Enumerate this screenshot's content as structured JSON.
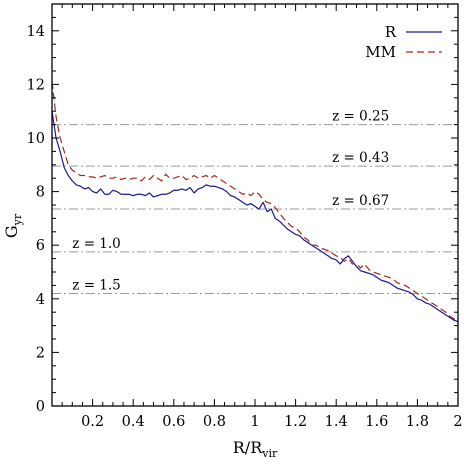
{
  "chart_data": {
    "type": "line",
    "xlabel": "R/R",
    "xlabel_sub": "vir",
    "ylabel": "G",
    "ylabel_sub": "yr",
    "xlim": [
      0,
      2
    ],
    "ylim": [
      0,
      15
    ],
    "xticks": [
      0.2,
      0.4,
      0.6,
      0.8,
      1.0,
      1.2,
      1.4,
      1.6,
      1.8,
      2.0
    ],
    "xtick_labels": [
      "0.2",
      "0.4",
      "0.6",
      "0.8",
      "1",
      "1.2",
      "1.4",
      "1.6",
      "1.8",
      "2"
    ],
    "yticks": [
      0,
      2,
      4,
      6,
      8,
      10,
      12,
      14
    ],
    "ytick_labels": [
      "0",
      "2",
      "4",
      "6",
      "8",
      "10",
      "12",
      "14"
    ],
    "grid": false,
    "legend": "top-right",
    "reference_lines": [
      {
        "label": "z = 0.25",
        "y": 10.5,
        "label_x": 1.38
      },
      {
        "label": "z = 0.43",
        "y": 8.95,
        "label_x": 1.38
      },
      {
        "label": "z = 0.67",
        "y": 7.35,
        "label_x": 1.38
      },
      {
        "label": "z = 1.0",
        "y": 5.75,
        "label_x": 0.1
      },
      {
        "label": "z = 1.5",
        "y": 4.2,
        "label_x": 0.1
      }
    ],
    "series": [
      {
        "name": "R",
        "color": "#1a1a8c",
        "style": "solid",
        "x": [
          0.0,
          0.02,
          0.04,
          0.06,
          0.08,
          0.1,
          0.12,
          0.14,
          0.16,
          0.18,
          0.2,
          0.22,
          0.24,
          0.26,
          0.28,
          0.3,
          0.32,
          0.34,
          0.36,
          0.38,
          0.4,
          0.42,
          0.44,
          0.46,
          0.48,
          0.5,
          0.52,
          0.54,
          0.56,
          0.58,
          0.6,
          0.62,
          0.64,
          0.66,
          0.68,
          0.7,
          0.72,
          0.74,
          0.76,
          0.78,
          0.8,
          0.82,
          0.84,
          0.86,
          0.88,
          0.9,
          0.92,
          0.94,
          0.96,
          0.98,
          1.0,
          1.02,
          1.04,
          1.06,
          1.08,
          1.1,
          1.12,
          1.14,
          1.16,
          1.18,
          1.2,
          1.22,
          1.24,
          1.26,
          1.28,
          1.3,
          1.32,
          1.34,
          1.36,
          1.38,
          1.4,
          1.42,
          1.44,
          1.46,
          1.48,
          1.5,
          1.52,
          1.54,
          1.56,
          1.58,
          1.6,
          1.62,
          1.64,
          1.66,
          1.68,
          1.7,
          1.72,
          1.74,
          1.76,
          1.78,
          1.8,
          1.82,
          1.84,
          1.86,
          1.88,
          1.9,
          1.92,
          1.94,
          1.96,
          1.98,
          2.0
        ],
        "y": [
          11.0,
          10.0,
          9.5,
          8.9,
          8.6,
          8.4,
          8.25,
          8.2,
          8.1,
          8.15,
          8.0,
          7.95,
          8.1,
          7.9,
          7.9,
          8.05,
          8.0,
          7.9,
          7.9,
          7.9,
          7.85,
          7.9,
          7.9,
          7.85,
          7.95,
          7.8,
          7.85,
          7.9,
          7.9,
          7.95,
          8.05,
          8.05,
          8.1,
          8.05,
          8.15,
          7.95,
          8.1,
          8.15,
          8.25,
          8.2,
          8.2,
          8.15,
          8.1,
          8.0,
          7.85,
          7.8,
          7.7,
          7.6,
          7.5,
          7.55,
          7.45,
          7.35,
          7.6,
          7.25,
          7.35,
          7.0,
          6.9,
          6.75,
          6.6,
          6.5,
          6.4,
          6.35,
          6.2,
          6.1,
          6.0,
          5.9,
          5.8,
          5.7,
          5.6,
          5.5,
          5.45,
          5.3,
          5.5,
          5.6,
          5.4,
          5.2,
          5.05,
          5.0,
          4.95,
          4.9,
          4.8,
          4.7,
          4.65,
          4.6,
          4.5,
          4.4,
          4.35,
          4.3,
          4.25,
          4.15,
          4.0,
          3.95,
          3.85,
          3.8,
          3.7,
          3.6,
          3.5,
          3.4,
          3.3,
          3.2,
          3.15
        ]
      },
      {
        "name": "MM",
        "color": "#a0281e",
        "style": "dashed",
        "x": [
          0.0,
          0.02,
          0.04,
          0.06,
          0.08,
          0.1,
          0.12,
          0.14,
          0.16,
          0.18,
          0.2,
          0.22,
          0.24,
          0.26,
          0.28,
          0.3,
          0.32,
          0.34,
          0.36,
          0.38,
          0.4,
          0.42,
          0.44,
          0.46,
          0.48,
          0.5,
          0.52,
          0.54,
          0.56,
          0.58,
          0.6,
          0.62,
          0.64,
          0.66,
          0.68,
          0.7,
          0.72,
          0.74,
          0.76,
          0.78,
          0.8,
          0.82,
          0.84,
          0.86,
          0.88,
          0.9,
          0.92,
          0.94,
          0.96,
          0.98,
          1.0,
          1.02,
          1.04,
          1.06,
          1.08,
          1.1,
          1.12,
          1.14,
          1.16,
          1.18,
          1.2,
          1.22,
          1.24,
          1.26,
          1.28,
          1.3,
          1.32,
          1.34,
          1.36,
          1.38,
          1.4,
          1.42,
          1.44,
          1.46,
          1.48,
          1.5,
          1.52,
          1.54,
          1.56,
          1.58,
          1.6,
          1.62,
          1.64,
          1.66,
          1.68,
          1.7,
          1.72,
          1.74,
          1.76,
          1.78,
          1.8,
          1.82,
          1.84,
          1.86,
          1.88,
          1.9,
          1.92,
          1.94,
          1.96,
          1.98,
          2.0
        ],
        "y": [
          12.1,
          10.8,
          10.0,
          9.5,
          9.0,
          8.8,
          8.7,
          8.6,
          8.6,
          8.55,
          8.55,
          8.5,
          8.55,
          8.6,
          8.5,
          8.5,
          8.55,
          8.45,
          8.5,
          8.45,
          8.5,
          8.5,
          8.4,
          8.55,
          8.45,
          8.6,
          8.5,
          8.4,
          8.65,
          8.5,
          8.5,
          8.55,
          8.6,
          8.45,
          8.5,
          8.6,
          8.5,
          8.55,
          8.6,
          8.5,
          8.6,
          8.5,
          8.4,
          8.3,
          8.2,
          8.1,
          8.0,
          7.9,
          7.95,
          7.85,
          8.0,
          7.9,
          7.7,
          7.6,
          7.55,
          7.4,
          7.2,
          7.0,
          6.85,
          6.7,
          6.65,
          6.5,
          6.3,
          6.2,
          6.0,
          6.0,
          5.9,
          5.85,
          5.8,
          5.7,
          5.6,
          5.55,
          5.4,
          5.5,
          5.3,
          5.3,
          5.15,
          5.3,
          5.1,
          5.0,
          4.95,
          4.9,
          4.85,
          4.8,
          4.75,
          4.6,
          4.55,
          4.5,
          4.4,
          4.3,
          4.2,
          4.1,
          4.0,
          3.9,
          3.8,
          3.7,
          3.6,
          3.5,
          3.35,
          3.25,
          3.2
        ]
      }
    ]
  }
}
